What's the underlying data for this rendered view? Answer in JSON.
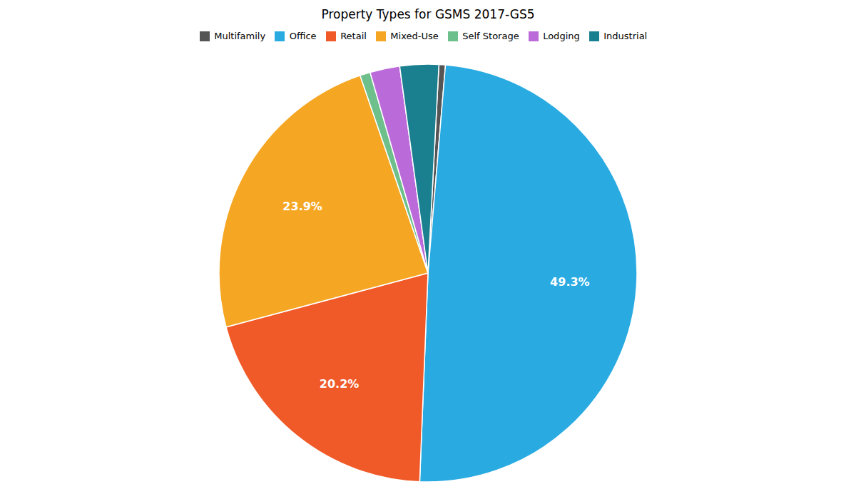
{
  "chart_data": {
    "type": "pie",
    "title": "Property Types for GSMS 2017-GS5",
    "categories": [
      "Multifamily",
      "Office",
      "Retail",
      "Mixed-Use",
      "Self Storage",
      "Lodging",
      "Industrial"
    ],
    "values": [
      0.5,
      49.3,
      20.2,
      23.9,
      0.8,
      2.3,
      3.0
    ],
    "value_labels": [
      null,
      "49.3%",
      "20.2%",
      "23.9%",
      null,
      null,
      null
    ],
    "colors": [
      "#555555",
      "#29ABE2",
      "#F05A28",
      "#F5A623",
      "#6DBF8B",
      "#BB6BD9",
      "#1A7F8E"
    ],
    "data_labels": true,
    "legend": "top"
  }
}
